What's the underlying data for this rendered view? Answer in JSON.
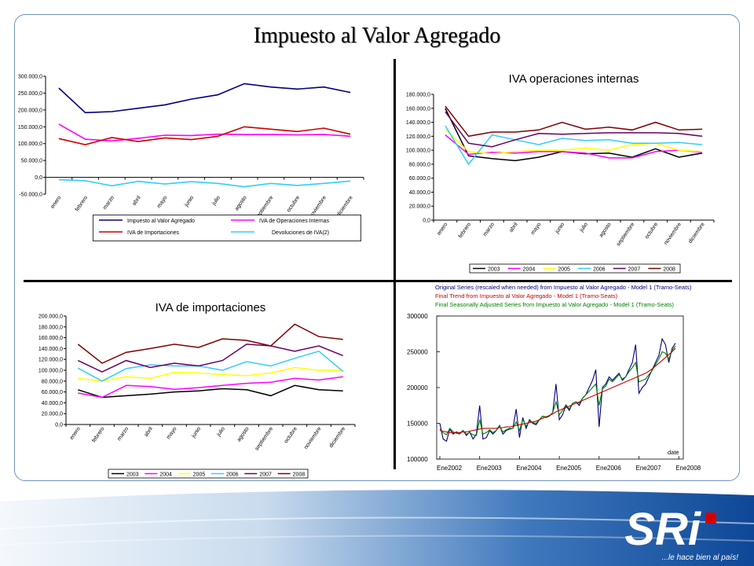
{
  "slide": {
    "title": "Impuesto al Valor Agregado"
  },
  "months": [
    "enero",
    "febrero",
    "marzo",
    "abril",
    "mayo",
    "junio",
    "julio",
    "agosto",
    "septiembre",
    "octubre",
    "noviembre",
    "diciembre"
  ],
  "logo": {
    "text": "SRi",
    "slogan": "...le hace bien al país!"
  },
  "colors": {
    "y2003": "#000000",
    "y2004": "#ff00ff",
    "y2005": "#ffff00",
    "y2006": "#33ccff",
    "y2007": "#660066",
    "y2008": "#800000"
  },
  "chart_data": [
    {
      "type": "line",
      "title": "",
      "yticks": [
        "300.000,0",
        "250.000,0",
        "200.000,0",
        "150.000,0",
        "100.000,0",
        "50.000,0",
        "0,0",
        "-50.000,0"
      ],
      "ylim": [
        -50000,
        300000
      ],
      "series": [
        {
          "name": "Impuesto al Valor Agregado",
          "color": "#000080",
          "values": [
            265000,
            192000,
            195000,
            205000,
            215000,
            232000,
            245000,
            278000,
            268000,
            262000,
            268000,
            252000
          ]
        },
        {
          "name": "IVA de Operaciones Internas",
          "color": "#ff00ff",
          "values": [
            158000,
            113000,
            108000,
            116000,
            125000,
            124000,
            128000,
            127000,
            127000,
            126000,
            127000,
            122000
          ]
        },
        {
          "name": "IVA de Importaciones",
          "color": "#cc0000",
          "values": [
            115000,
            97000,
            118000,
            106000,
            117000,
            112000,
            122000,
            150000,
            143000,
            136000,
            146000,
            128000
          ]
        },
        {
          "name": "Devoluciones de IVA(2)",
          "color": "#33ccff",
          "values": [
            -7000,
            -10000,
            -25000,
            -12000,
            -20000,
            -13000,
            -18000,
            -28000,
            -18000,
            -24000,
            -18000,
            -11000
          ]
        }
      ]
    },
    {
      "type": "line",
      "title": "IVA operaciones internas",
      "yticks": [
        "180.000,0",
        "160.000,0",
        "140.000,0",
        "120.000,0",
        "100.000,0",
        "80.000,0",
        "60.000,0",
        "40.000,0",
        "20.000,0",
        "0,0"
      ],
      "ylim": [
        0,
        180000
      ],
      "series": [
        {
          "name": "2003",
          "color": "#000000",
          "values": [
            160000,
            92000,
            88000,
            85000,
            90000,
            98000,
            95000,
            96000,
            90000,
            102000,
            90000,
            96000
          ]
        },
        {
          "name": "2004",
          "color": "#ff00ff",
          "values": [
            122000,
            94000,
            97000,
            96000,
            98000,
            98000,
            96000,
            89000,
            89000,
            98000,
            100000,
            97000
          ]
        },
        {
          "name": "2005",
          "color": "#ffff00",
          "values": [
            130000,
            98000,
            95000,
            98000,
            100000,
            100000,
            103000,
            100000,
            108000,
            110000,
            100000,
            98000
          ]
        },
        {
          "name": "2006",
          "color": "#33ccff",
          "values": [
            135000,
            80000,
            122000,
            115000,
            108000,
            117000,
            114000,
            115000,
            110000,
            110000,
            111000,
            108000
          ]
        },
        {
          "name": "2007",
          "color": "#660066",
          "values": [
            155000,
            110000,
            105000,
            115000,
            124000,
            123000,
            124000,
            125000,
            125000,
            125000,
            124000,
            120000
          ]
        },
        {
          "name": "2008",
          "color": "#800000",
          "values": [
            163000,
            120000,
            126000,
            126000,
            129000,
            140000,
            130000,
            133000,
            129000,
            140000,
            129000,
            130000
          ]
        }
      ]
    },
    {
      "type": "line",
      "title": "IVA de importaciones",
      "yticks": [
        "200.000,0",
        "180.000,0",
        "160.000,0",
        "140.000,0",
        "120.000,0",
        "100.000,0",
        "80.000,0",
        "60.000,0",
        "40.000,0",
        "20.000,0",
        "0,0"
      ],
      "ylim": [
        0,
        200000
      ],
      "series": [
        {
          "name": "2003",
          "color": "#000000",
          "values": [
            64000,
            50000,
            53000,
            56000,
            60000,
            62000,
            66000,
            64000,
            53000,
            72000,
            64000,
            62000
          ]
        },
        {
          "name": "2004",
          "color": "#ff00ff",
          "values": [
            58000,
            50000,
            72000,
            70000,
            65000,
            68000,
            72000,
            76000,
            78000,
            85000,
            82000,
            88000
          ]
        },
        {
          "name": "2005",
          "color": "#ffff00",
          "values": [
            85000,
            80000,
            88000,
            85000,
            96000,
            95000,
            92000,
            90000,
            95000,
            105000,
            100000,
            100000
          ]
        },
        {
          "name": "2006",
          "color": "#33ccff",
          "values": [
            104000,
            80000,
            103000,
            110000,
            108000,
            108000,
            100000,
            116000,
            108000,
            122000,
            135000,
            98000
          ]
        },
        {
          "name": "2007",
          "color": "#660066",
          "values": [
            118000,
            97000,
            118000,
            105000,
            113000,
            108000,
            118000,
            148000,
            145000,
            135000,
            145000,
            127000
          ]
        },
        {
          "name": "2008",
          "color": "#800000",
          "values": [
            148000,
            113000,
            133000,
            140000,
            148000,
            142000,
            158000,
            155000,
            145000,
            185000,
            162000,
            157000
          ]
        }
      ]
    },
    {
      "type": "line",
      "title": "",
      "legend": [
        {
          "name": "Original Series (rescaled when needed) from Impuesto al Valor Agregado - Model 1 (Tramo-Seats)",
          "color": "#000080"
        },
        {
          "name": "Final Trend from Impuesto al Valor Agregado - Model 1 (Tramo-Seats)",
          "color": "#cc0000"
        },
        {
          "name": "Final Seasonally Adjusted Series from Impuesto al Valor Agregado - Model 1 (Tramo-Seats)",
          "color": "#008000"
        }
      ],
      "yticks": [
        "300000",
        "250000",
        "200000",
        "150000",
        "100000"
      ],
      "ylim": [
        100000,
        300000
      ],
      "xticks": [
        "Ene2002",
        "Ene2003",
        "Ene2004",
        "Ene2005",
        "Ene2006",
        "Ene2007",
        "Ene2008"
      ],
      "xlabel": "date",
      "original": [
        150000,
        128000,
        125000,
        142000,
        135000,
        138000,
        136000,
        140000,
        133000,
        138000,
        128000,
        135000,
        175000,
        128000,
        130000,
        140000,
        135000,
        140000,
        147000,
        135000,
        140000,
        142000,
        143000,
        170000,
        130000,
        158000,
        143000,
        155000,
        150000,
        148000,
        155000,
        160000,
        158000,
        160000,
        165000,
        205000,
        155000,
        162000,
        175000,
        168000,
        178000,
        180000,
        175000,
        185000,
        190000,
        200000,
        210000,
        225000,
        145000,
        200000,
        205000,
        215000,
        210000,
        215000,
        220000,
        210000,
        215000,
        225000,
        235000,
        260000,
        192000,
        200000,
        205000,
        215000,
        225000,
        235000,
        245000,
        268000,
        260000,
        235000,
        255000,
        262000
      ],
      "trend": [
        140000,
        139000,
        138000,
        137000,
        137000,
        137000,
        137000,
        138000,
        138000,
        139000,
        140000,
        141000,
        142000,
        143000,
        143000,
        143000,
        143000,
        143000,
        144000,
        144000,
        145000,
        145000,
        146000,
        147000,
        148000,
        149000,
        150000,
        151000,
        152000,
        153000,
        155000,
        157000,
        159000,
        161000,
        163000,
        166000,
        168000,
        170000,
        172000,
        174000,
        176000,
        178000,
        180000,
        182000,
        184000,
        186000,
        188000,
        190000,
        192000,
        194000,
        196000,
        198000,
        200000,
        202000,
        204000,
        206000,
        208000,
        210000,
        212000,
        214000,
        216000,
        218000,
        220000,
        223000,
        226000,
        230000,
        234000,
        238000,
        242000,
        246000,
        250000,
        255000
      ],
      "seasonal_adjusted": [
        142000,
        137000,
        134000,
        143000,
        138000,
        136000,
        135000,
        140000,
        135000,
        137000,
        134000,
        133000,
        155000,
        135000,
        137000,
        141000,
        137000,
        140000,
        146000,
        138000,
        141000,
        143000,
        143000,
        152000,
        140000,
        155000,
        146000,
        153000,
        151000,
        150000,
        155000,
        160000,
        159000,
        160000,
        165000,
        180000,
        162000,
        168000,
        176000,
        170000,
        178000,
        180000,
        178000,
        185000,
        190000,
        195000,
        200000,
        205000,
        175000,
        198000,
        202000,
        212000,
        208000,
        213000,
        218000,
        212000,
        215000,
        222000,
        228000,
        235000,
        208000,
        210000,
        212000,
        218000,
        224000,
        232000,
        240000,
        250000,
        248000,
        240000,
        252000,
        258000
      ]
    }
  ]
}
